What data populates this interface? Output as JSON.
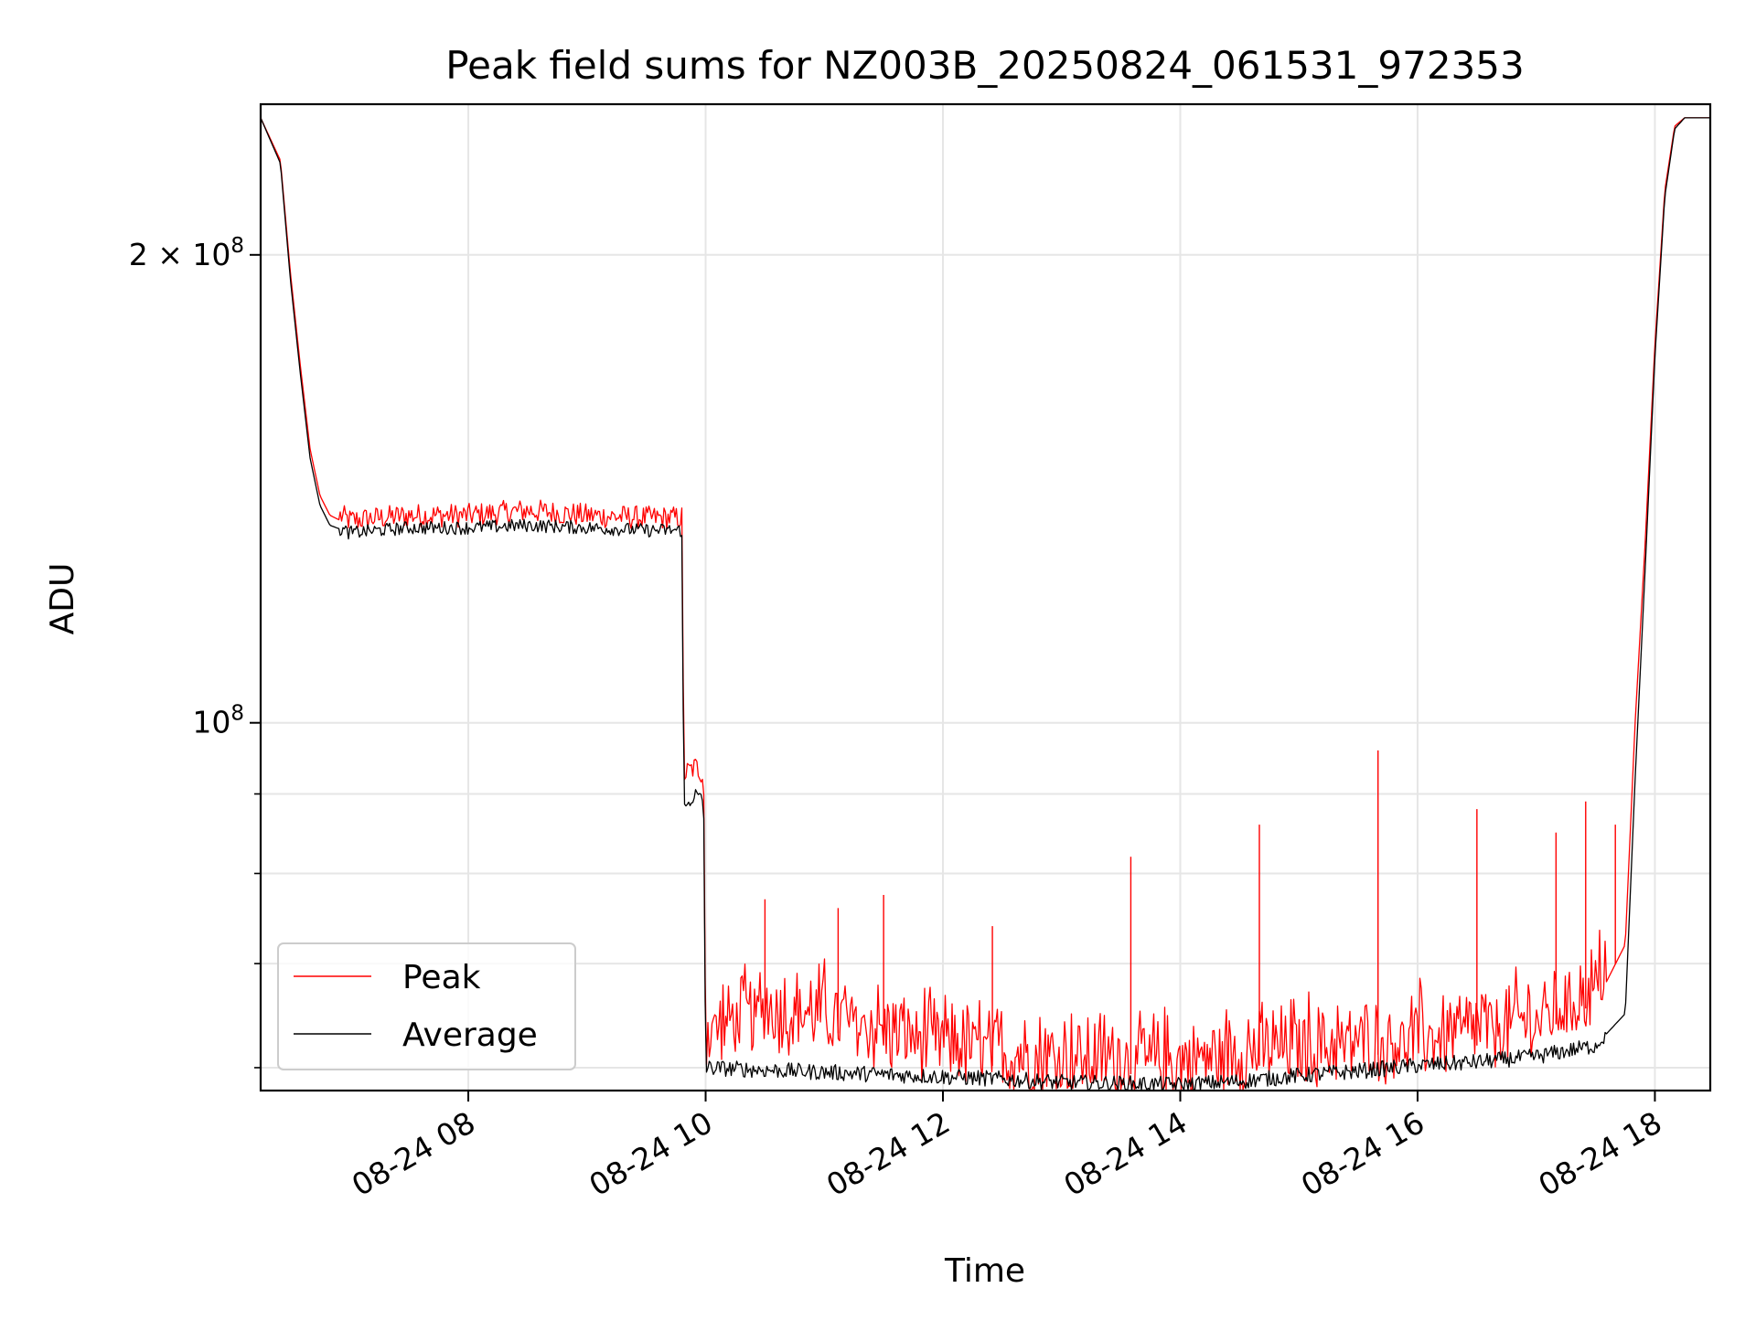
{
  "chart_data": {
    "type": "line",
    "title": "Peak field sums for NZ003B_20250824_061531_972353",
    "xlabel": "Time",
    "ylabel": "ADU",
    "yscale": "log",
    "ylim": [
      58000000,
      250000000
    ],
    "xlim": [
      "2025-08-24 06:15",
      "2025-08-24 18:28"
    ],
    "grid": true,
    "legend_position": "lower-left",
    "x_ticks": [
      {
        "x": "2025-08-24 08:00",
        "label": "08-24 08"
      },
      {
        "x": "2025-08-24 10:00",
        "label": "08-24 10"
      },
      {
        "x": "2025-08-24 12:00",
        "label": "08-24 12"
      },
      {
        "x": "2025-08-24 14:00",
        "label": "08-24 14"
      },
      {
        "x": "2025-08-24 16:00",
        "label": "08-24 16"
      },
      {
        "x": "2025-08-24 18:00",
        "label": "08-24 18"
      }
    ],
    "y_major_ticks": [
      {
        "value": 100000000,
        "label_base": "10",
        "label_exp": "8",
        "label_coef": ""
      },
      {
        "value": 200000000,
        "label_base": "10",
        "label_exp": "8",
        "label_coef": "2 × "
      }
    ],
    "y_minor_gridlines": [
      60000000,
      70000000,
      80000000,
      90000000
    ],
    "series": [
      {
        "name": "Peak",
        "color": "#ff0000",
        "x": [
          "2025-08-24 06:15",
          "2025-08-24 06:25",
          "2025-08-24 06:30",
          "2025-08-24 06:35",
          "2025-08-24 06:40",
          "2025-08-24 06:45",
          "2025-08-24 06:50",
          "2025-08-24 07:00",
          "2025-08-24 07:30",
          "2025-08-24 08:00",
          "2025-08-24 08:30",
          "2025-08-24 09:00",
          "2025-08-24 09:30",
          "2025-08-24 09:48",
          "2025-08-24 09:49",
          "2025-08-24 09:55",
          "2025-08-24 09:59",
          "2025-08-24 10:00",
          "2025-08-24 10:30",
          "2025-08-24 11:00",
          "2025-08-24 11:30",
          "2025-08-24 12:00",
          "2025-08-24 12:30",
          "2025-08-24 13:00",
          "2025-08-24 13:30",
          "2025-08-24 14:00",
          "2025-08-24 14:30",
          "2025-08-24 15:00",
          "2025-08-24 15:30",
          "2025-08-24 16:00",
          "2025-08-24 16:30",
          "2025-08-24 17:00",
          "2025-08-24 17:30",
          "2025-08-24 17:45",
          "2025-08-24 17:50",
          "2025-08-24 17:55",
          "2025-08-24 18:00",
          "2025-08-24 18:05",
          "2025-08-24 18:10",
          "2025-08-24 18:15",
          "2025-08-24 18:28"
        ],
        "y": [
          245000000,
          230000000,
          195000000,
          170000000,
          150000000,
          140000000,
          136000000,
          134000000,
          135000000,
          135000000,
          136000000,
          135000000,
          134500000,
          134500000,
          92000000,
          93000000,
          92000000,
          62000000,
          64000000,
          63500000,
          62000000,
          61000000,
          60000000,
          59500000,
          59500000,
          59000000,
          60000000,
          60500000,
          61000000,
          61500000,
          62000000,
          63000000,
          66000000,
          72000000,
          100000000,
          130000000,
          175000000,
          220000000,
          242000000,
          245000000,
          245000000
        ],
        "spikes": [
          {
            "x": "2025-08-24 10:30",
            "y": 77000000
          },
          {
            "x": "2025-08-24 11:07",
            "y": 76000000
          },
          {
            "x": "2025-08-24 11:30",
            "y": 77500000
          },
          {
            "x": "2025-08-24 12:25",
            "y": 74000000
          },
          {
            "x": "2025-08-24 13:35",
            "y": 82000000
          },
          {
            "x": "2025-08-24 14:40",
            "y": 86000000
          },
          {
            "x": "2025-08-24 15:40",
            "y": 96000000
          },
          {
            "x": "2025-08-24 16:30",
            "y": 88000000
          },
          {
            "x": "2025-08-24 17:10",
            "y": 85000000
          },
          {
            "x": "2025-08-24 17:25",
            "y": 89000000
          },
          {
            "x": "2025-08-24 17:40",
            "y": 86000000
          }
        ]
      },
      {
        "name": "Average",
        "color": "#000000",
        "x": [
          "2025-08-24 06:15",
          "2025-08-24 06:25",
          "2025-08-24 06:30",
          "2025-08-24 06:35",
          "2025-08-24 06:40",
          "2025-08-24 06:45",
          "2025-08-24 06:50",
          "2025-08-24 07:00",
          "2025-08-24 07:30",
          "2025-08-24 08:00",
          "2025-08-24 08:30",
          "2025-08-24 09:00",
          "2025-08-24 09:30",
          "2025-08-24 09:48",
          "2025-08-24 09:49",
          "2025-08-24 09:55",
          "2025-08-24 09:59",
          "2025-08-24 10:00",
          "2025-08-24 10:30",
          "2025-08-24 11:00",
          "2025-08-24 11:30",
          "2025-08-24 12:00",
          "2025-08-24 12:30",
          "2025-08-24 13:00",
          "2025-08-24 13:30",
          "2025-08-24 14:00",
          "2025-08-24 14:30",
          "2025-08-24 15:00",
          "2025-08-24 15:30",
          "2025-08-24 16:00",
          "2025-08-24 16:30",
          "2025-08-24 17:00",
          "2025-08-24 17:30",
          "2025-08-24 17:45",
          "2025-08-24 17:50",
          "2025-08-24 17:55",
          "2025-08-24 18:00",
          "2025-08-24 18:05",
          "2025-08-24 18:10",
          "2025-08-24 18:15",
          "2025-08-24 18:28"
        ],
        "y": [
          245000000,
          229000000,
          193000000,
          168000000,
          148000000,
          138000000,
          134000000,
          132500000,
          133500000,
          133500000,
          134000000,
          133500000,
          133000000,
          133000000,
          88000000,
          90000000,
          89000000,
          60000000,
          59800000,
          59600000,
          59400000,
          59200000,
          59000000,
          58700000,
          58600000,
          58500000,
          58800000,
          59300000,
          59700000,
          60200000,
          60500000,
          61000000,
          62000000,
          65000000,
          92000000,
          125000000,
          172000000,
          218000000,
          241000000,
          245000000,
          245000000
        ]
      }
    ]
  }
}
